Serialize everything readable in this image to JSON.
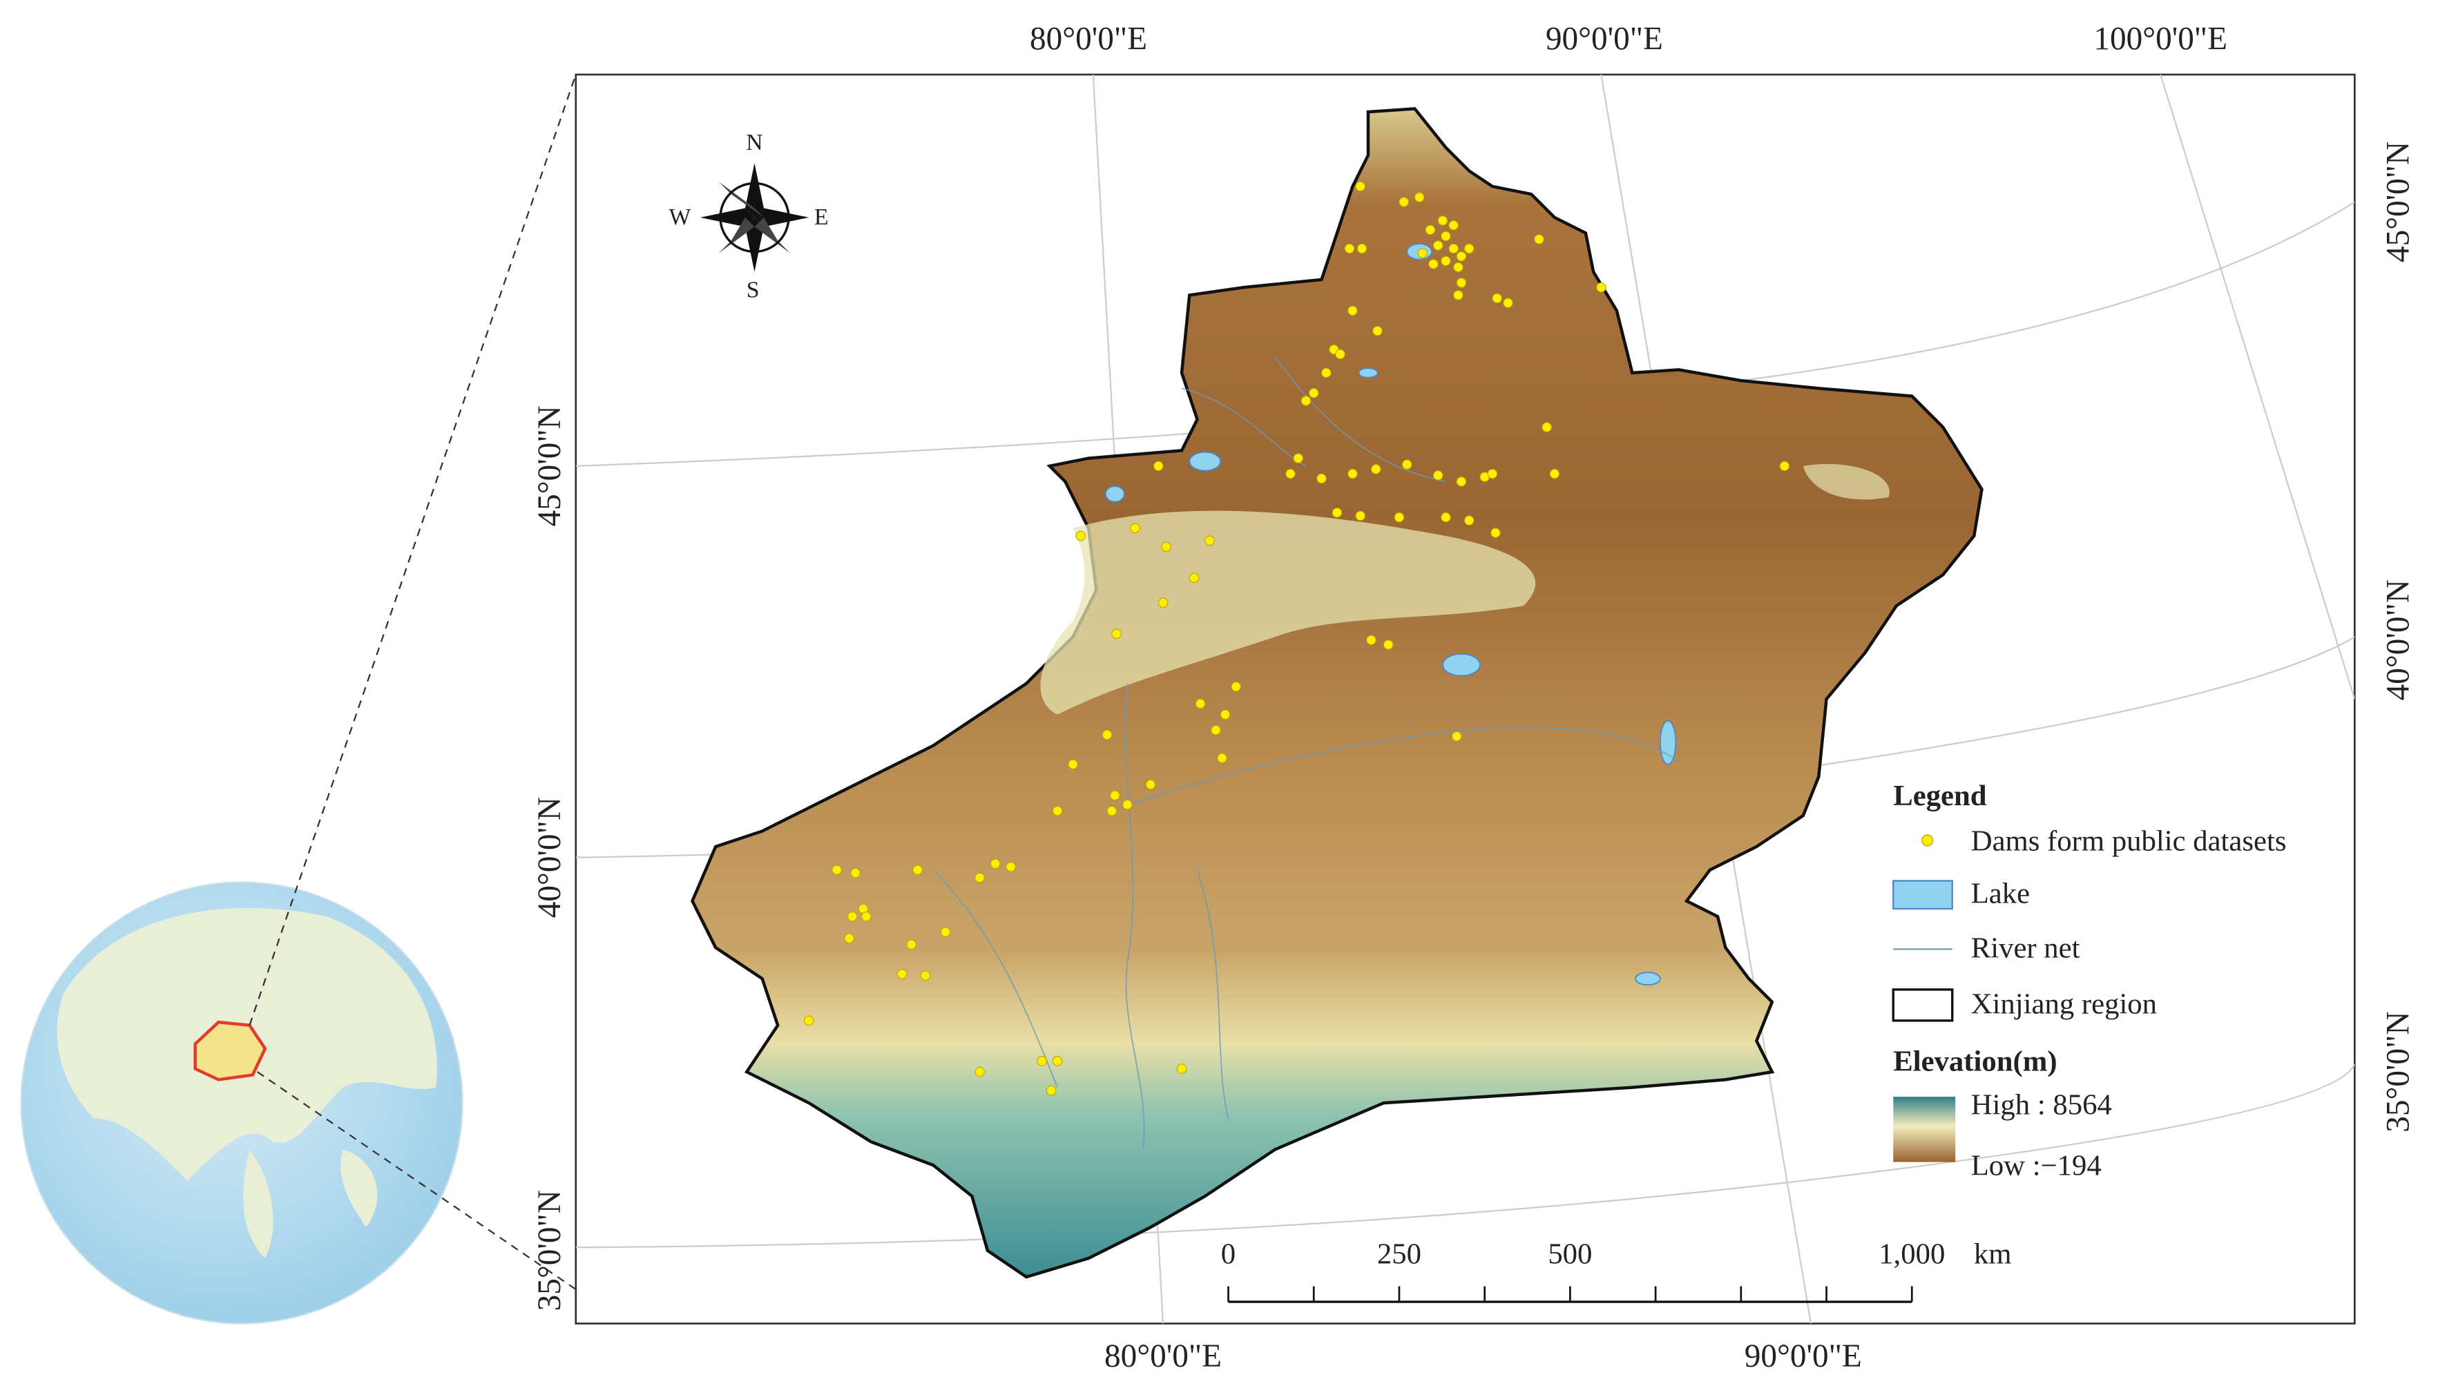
{
  "graticule": {
    "top": [
      "80°0'0\"E",
      "90°0'0\"E",
      "100°0'0\"E"
    ],
    "bottom": [
      "80°0'0\"E",
      "90°0'0\"E"
    ],
    "left": [
      "45°0'0\"N",
      "40°0'0\"N",
      "35°0'0\"N"
    ],
    "right": [
      "45°0'0\"N",
      "40°0'0\"N",
      "35°0'0\"N"
    ]
  },
  "compass": {
    "n": "N",
    "e": "E",
    "s": "S",
    "w": "W"
  },
  "legend": {
    "title": "Legend",
    "items": [
      "Dams form public datasets",
      "Lake",
      "River net",
      "Xinjiang region"
    ],
    "elevation_title": "Elevation(m)",
    "high": "High : 8564",
    "low": "Low :−194"
  },
  "scale_bar": {
    "labels": [
      "0",
      "250",
      "500",
      "1,000"
    ],
    "unit": "km"
  }
}
